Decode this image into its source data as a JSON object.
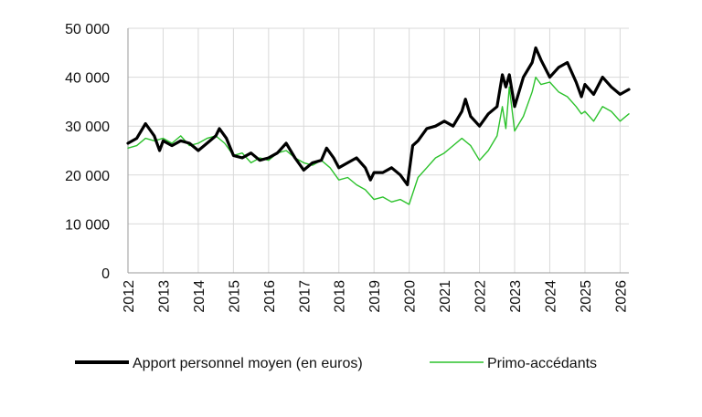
{
  "chart_data": {
    "type": "line",
    "title": "",
    "xlabel": "",
    "ylabel": "",
    "ylim": [
      0,
      50000
    ],
    "xlim": [
      2012,
      2026.25
    ],
    "y_ticks": [
      0,
      10000,
      20000,
      30000,
      40000,
      50000
    ],
    "y_tick_labels": [
      "0",
      "10 000",
      "20 000",
      "30 000",
      "40 000",
      "50 000"
    ],
    "x_ticks": [
      2012,
      2013,
      2014,
      2015,
      2016,
      2017,
      2018,
      2019,
      2020,
      2021,
      2022,
      2023,
      2024,
      2025,
      2026
    ],
    "x_tick_labels": [
      "2012",
      "2013",
      "2014",
      "2015",
      "2016",
      "2017",
      "2018",
      "2019",
      "2020",
      "2021",
      "2022",
      "2023",
      "2024",
      "2025",
      "2026"
    ],
    "grid": "vertical and horizontal",
    "legend": "bottom",
    "series": [
      {
        "name": "Apport personnel moyen (en euros)",
        "color": "#000000",
        "points": [
          [
            2012.0,
            26500
          ],
          [
            2012.25,
            27500
          ],
          [
            2012.5,
            30500
          ],
          [
            2012.75,
            28000
          ],
          [
            2012.9,
            25000
          ],
          [
            2013.0,
            27000
          ],
          [
            2013.25,
            26000
          ],
          [
            2013.5,
            27000
          ],
          [
            2013.75,
            26500
          ],
          [
            2014.0,
            25000
          ],
          [
            2014.25,
            26500
          ],
          [
            2014.5,
            28000
          ],
          [
            2014.6,
            29500
          ],
          [
            2014.8,
            27500
          ],
          [
            2015.0,
            24000
          ],
          [
            2015.25,
            23500
          ],
          [
            2015.5,
            24500
          ],
          [
            2015.75,
            23000
          ],
          [
            2016.0,
            23500
          ],
          [
            2016.25,
            24500
          ],
          [
            2016.5,
            26500
          ],
          [
            2016.75,
            23500
          ],
          [
            2017.0,
            21000
          ],
          [
            2017.25,
            22500
          ],
          [
            2017.5,
            23000
          ],
          [
            2017.65,
            25500
          ],
          [
            2017.85,
            23500
          ],
          [
            2018.0,
            21500
          ],
          [
            2018.25,
            22500
          ],
          [
            2018.5,
            23500
          ],
          [
            2018.75,
            21500
          ],
          [
            2018.9,
            19000
          ],
          [
            2019.0,
            20500
          ],
          [
            2019.25,
            20500
          ],
          [
            2019.5,
            21500
          ],
          [
            2019.75,
            20000
          ],
          [
            2019.95,
            18000
          ],
          [
            2020.1,
            26000
          ],
          [
            2020.25,
            27000
          ],
          [
            2020.5,
            29500
          ],
          [
            2020.75,
            30000
          ],
          [
            2021.0,
            31000
          ],
          [
            2021.25,
            30000
          ],
          [
            2021.5,
            33000
          ],
          [
            2021.6,
            35500
          ],
          [
            2021.75,
            32000
          ],
          [
            2022.0,
            30000
          ],
          [
            2022.25,
            32500
          ],
          [
            2022.5,
            34000
          ],
          [
            2022.65,
            40500
          ],
          [
            2022.75,
            38000
          ],
          [
            2022.85,
            40500
          ],
          [
            2023.0,
            34000
          ],
          [
            2023.25,
            40000
          ],
          [
            2023.5,
            43000
          ],
          [
            2023.6,
            46000
          ],
          [
            2023.75,
            43500
          ],
          [
            2024.0,
            40000
          ],
          [
            2024.25,
            42000
          ],
          [
            2024.5,
            43000
          ],
          [
            2024.75,
            39000
          ],
          [
            2024.9,
            36000
          ],
          [
            2025.0,
            38500
          ],
          [
            2025.25,
            36500
          ],
          [
            2025.5,
            40000
          ],
          [
            2025.75,
            38000
          ],
          [
            2026.0,
            36500
          ],
          [
            2026.25,
            37500
          ]
        ]
      },
      {
        "name": "Primo-accédants",
        "color": "#2cc22c",
        "points": [
          [
            2012.0,
            25500
          ],
          [
            2012.25,
            26000
          ],
          [
            2012.5,
            27500
          ],
          [
            2012.75,
            27000
          ],
          [
            2013.0,
            27500
          ],
          [
            2013.25,
            26500
          ],
          [
            2013.5,
            28000
          ],
          [
            2013.75,
            26000
          ],
          [
            2014.0,
            26500
          ],
          [
            2014.25,
            27500
          ],
          [
            2014.5,
            28000
          ],
          [
            2014.75,
            26500
          ],
          [
            2015.0,
            24000
          ],
          [
            2015.25,
            24500
          ],
          [
            2015.5,
            22500
          ],
          [
            2015.75,
            23500
          ],
          [
            2016.0,
            23000
          ],
          [
            2016.25,
            24500
          ],
          [
            2016.5,
            25000
          ],
          [
            2016.75,
            23500
          ],
          [
            2017.0,
            22500
          ],
          [
            2017.25,
            22000
          ],
          [
            2017.5,
            23000
          ],
          [
            2017.75,
            21500
          ],
          [
            2018.0,
            19000
          ],
          [
            2018.25,
            19500
          ],
          [
            2018.5,
            18000
          ],
          [
            2018.75,
            17000
          ],
          [
            2019.0,
            15000
          ],
          [
            2019.25,
            15500
          ],
          [
            2019.5,
            14500
          ],
          [
            2019.75,
            15000
          ],
          [
            2020.0,
            14000
          ],
          [
            2020.25,
            19500
          ],
          [
            2020.5,
            21500
          ],
          [
            2020.75,
            23500
          ],
          [
            2021.0,
            24500
          ],
          [
            2021.25,
            26000
          ],
          [
            2021.5,
            27500
          ],
          [
            2021.75,
            26000
          ],
          [
            2022.0,
            23000
          ],
          [
            2022.25,
            25000
          ],
          [
            2022.5,
            28000
          ],
          [
            2022.65,
            34000
          ],
          [
            2022.75,
            29500
          ],
          [
            2022.85,
            38000
          ],
          [
            2023.0,
            29000
          ],
          [
            2023.25,
            32000
          ],
          [
            2023.5,
            37000
          ],
          [
            2023.6,
            40000
          ],
          [
            2023.75,
            38500
          ],
          [
            2024.0,
            39000
          ],
          [
            2024.25,
            37000
          ],
          [
            2024.5,
            36000
          ],
          [
            2024.75,
            34000
          ],
          [
            2024.9,
            32500
          ],
          [
            2025.0,
            33000
          ],
          [
            2025.25,
            31000
          ],
          [
            2025.5,
            34000
          ],
          [
            2025.75,
            33000
          ],
          [
            2026.0,
            31000
          ],
          [
            2026.25,
            32500
          ]
        ]
      }
    ]
  }
}
